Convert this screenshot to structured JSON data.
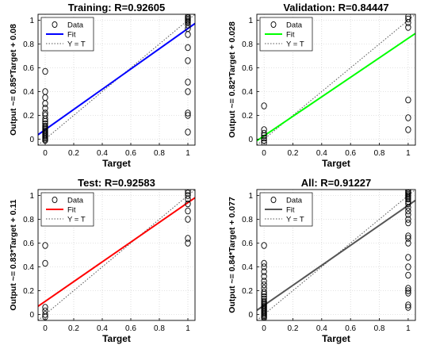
{
  "chart_data": [
    {
      "type": "scatter",
      "title": "Training: R=0.92605",
      "xlabel": "Target",
      "ylabel": "Output ~= 0.85*Target + 0.08",
      "xlim": [
        -0.05,
        1.05
      ],
      "ylim": [
        -0.05,
        1.05
      ],
      "xticks": [
        "0",
        "0.2",
        "0.4",
        "0.6",
        "0.8",
        "1"
      ],
      "yticks": [
        "0",
        "0.2",
        "0.4",
        "0.6",
        "0.8",
        "1"
      ],
      "legend": {
        "placement": "top-left",
        "entries": [
          "Data",
          "Fit",
          "Y = T"
        ]
      },
      "fit": {
        "slope": 0.85,
        "intercept": 0.08,
        "color": "#0000ff"
      },
      "data": [
        {
          "x": 0,
          "y": -0.01
        },
        {
          "x": 0,
          "y": 0.0
        },
        {
          "x": 0,
          "y": 0.01
        },
        {
          "x": 0,
          "y": 0.02
        },
        {
          "x": 0,
          "y": 0.03
        },
        {
          "x": 0,
          "y": 0.04
        },
        {
          "x": 0,
          "y": 0.05
        },
        {
          "x": 0,
          "y": 0.06
        },
        {
          "x": 0,
          "y": 0.07
        },
        {
          "x": 0,
          "y": 0.08
        },
        {
          "x": 0,
          "y": 0.09
        },
        {
          "x": 0,
          "y": 0.1
        },
        {
          "x": 0,
          "y": 0.11
        },
        {
          "x": 0,
          "y": 0.13
        },
        {
          "x": 0,
          "y": 0.15
        },
        {
          "x": 0,
          "y": 0.17
        },
        {
          "x": 0,
          "y": 0.2
        },
        {
          "x": 0,
          "y": 0.22
        },
        {
          "x": 0,
          "y": 0.26
        },
        {
          "x": 0,
          "y": 0.3
        },
        {
          "x": 0,
          "y": 0.35
        },
        {
          "x": 0,
          "y": 0.4
        },
        {
          "x": 0,
          "y": 0.57
        },
        {
          "x": 1,
          "y": 0.06
        },
        {
          "x": 1,
          "y": 0.2
        },
        {
          "x": 1,
          "y": 0.22
        },
        {
          "x": 1,
          "y": 0.4
        },
        {
          "x": 1,
          "y": 0.48
        },
        {
          "x": 1,
          "y": 0.66
        },
        {
          "x": 1,
          "y": 0.77
        },
        {
          "x": 1,
          "y": 0.88
        },
        {
          "x": 1,
          "y": 0.93
        },
        {
          "x": 1,
          "y": 0.96
        },
        {
          "x": 1,
          "y": 0.98
        },
        {
          "x": 1,
          "y": 0.99
        },
        {
          "x": 1,
          "y": 1.0
        },
        {
          "x": 1,
          "y": 1.01
        },
        {
          "x": 1,
          "y": 1.02
        },
        {
          "x": 1,
          "y": 1.03
        }
      ]
    },
    {
      "type": "scatter",
      "title": "Validation: R=0.84447",
      "xlabel": "Target",
      "ylabel": "Output ~= 0.82*Target + 0.028",
      "xlim": [
        -0.05,
        1.05
      ],
      "ylim": [
        -0.05,
        1.05
      ],
      "xticks": [
        "0",
        "0.2",
        "0.4",
        "0.6",
        "0.8",
        "1"
      ],
      "yticks": [
        "0",
        "0.2",
        "0.4",
        "0.6",
        "0.8",
        "1"
      ],
      "legend": {
        "placement": "top-left",
        "entries": [
          "Data",
          "Fit",
          "Y = T"
        ]
      },
      "fit": {
        "slope": 0.82,
        "intercept": 0.028,
        "color": "#00ff00"
      },
      "data": [
        {
          "x": 0,
          "y": -0.03
        },
        {
          "x": 0,
          "y": -0.01
        },
        {
          "x": 0,
          "y": 0.01
        },
        {
          "x": 0,
          "y": 0.03
        },
        {
          "x": 0,
          "y": 0.05
        },
        {
          "x": 0,
          "y": 0.08
        },
        {
          "x": 0,
          "y": 0.28
        },
        {
          "x": 1,
          "y": 0.08
        },
        {
          "x": 1,
          "y": 0.18
        },
        {
          "x": 1,
          "y": 0.33
        },
        {
          "x": 1,
          "y": 0.94
        },
        {
          "x": 1,
          "y": 0.98
        },
        {
          "x": 1,
          "y": 1.01
        },
        {
          "x": 1,
          "y": 1.03
        }
      ]
    },
    {
      "type": "scatter",
      "title": "Test: R=0.92583",
      "xlabel": "Target",
      "ylabel": "Output ~= 0.83*Target + 0.11",
      "xlim": [
        -0.05,
        1.05
      ],
      "ylim": [
        -0.05,
        1.05
      ],
      "xticks": [
        "0",
        "0.2",
        "0.4",
        "0.6",
        "0.8",
        "1"
      ],
      "yticks": [
        "0",
        "0.2",
        "0.4",
        "0.6",
        "0.8",
        "1"
      ],
      "legend": {
        "placement": "top-left",
        "entries": [
          "Data",
          "Fit",
          "Y = T"
        ]
      },
      "fit": {
        "slope": 0.83,
        "intercept": 0.11,
        "color": "#ff0000"
      },
      "data": [
        {
          "x": 0,
          "y": -0.02
        },
        {
          "x": 0,
          "y": 0.0
        },
        {
          "x": 0,
          "y": 0.03
        },
        {
          "x": 0,
          "y": 0.06
        },
        {
          "x": 0,
          "y": 0.43
        },
        {
          "x": 0,
          "y": 0.58
        },
        {
          "x": 1,
          "y": 0.6
        },
        {
          "x": 1,
          "y": 0.64
        },
        {
          "x": 1,
          "y": 0.8
        },
        {
          "x": 1,
          "y": 0.87
        },
        {
          "x": 1,
          "y": 0.93
        },
        {
          "x": 1,
          "y": 0.97
        },
        {
          "x": 1,
          "y": 1.0
        },
        {
          "x": 1,
          "y": 1.02
        },
        {
          "x": 1,
          "y": 1.04
        }
      ]
    },
    {
      "type": "scatter",
      "title": "All: R=0.91227",
      "xlabel": "Target",
      "ylabel": "Output ~= 0.84*Target + 0.077",
      "xlim": [
        -0.05,
        1.05
      ],
      "ylim": [
        -0.05,
        1.05
      ],
      "xticks": [
        "0",
        "0.2",
        "0.4",
        "0.6",
        "0.8",
        "1"
      ],
      "yticks": [
        "0",
        "0.2",
        "0.4",
        "0.6",
        "0.8",
        "1"
      ],
      "legend": {
        "placement": "top-left",
        "entries": [
          "Data",
          "Fit",
          "Y = T"
        ]
      },
      "fit": {
        "slope": 0.84,
        "intercept": 0.077,
        "color": "#555555"
      },
      "data": [
        {
          "x": 0,
          "y": -0.03
        },
        {
          "x": 0,
          "y": -0.02
        },
        {
          "x": 0,
          "y": -0.01
        },
        {
          "x": 0,
          "y": 0.0
        },
        {
          "x": 0,
          "y": 0.01
        },
        {
          "x": 0,
          "y": 0.02
        },
        {
          "x": 0,
          "y": 0.03
        },
        {
          "x": 0,
          "y": 0.04
        },
        {
          "x": 0,
          "y": 0.05
        },
        {
          "x": 0,
          "y": 0.06
        },
        {
          "x": 0,
          "y": 0.07
        },
        {
          "x": 0,
          "y": 0.08
        },
        {
          "x": 0,
          "y": 0.09
        },
        {
          "x": 0,
          "y": 0.1
        },
        {
          "x": 0,
          "y": 0.11
        },
        {
          "x": 0,
          "y": 0.13
        },
        {
          "x": 0,
          "y": 0.15
        },
        {
          "x": 0,
          "y": 0.17
        },
        {
          "x": 0,
          "y": 0.19
        },
        {
          "x": 0,
          "y": 0.22
        },
        {
          "x": 0,
          "y": 0.25
        },
        {
          "x": 0,
          "y": 0.28
        },
        {
          "x": 0,
          "y": 0.32
        },
        {
          "x": 0,
          "y": 0.36
        },
        {
          "x": 0,
          "y": 0.4
        },
        {
          "x": 0,
          "y": 0.43
        },
        {
          "x": 0,
          "y": 0.58
        },
        {
          "x": 1,
          "y": 0.06
        },
        {
          "x": 1,
          "y": 0.08
        },
        {
          "x": 1,
          "y": 0.18
        },
        {
          "x": 1,
          "y": 0.2
        },
        {
          "x": 1,
          "y": 0.22
        },
        {
          "x": 1,
          "y": 0.33
        },
        {
          "x": 1,
          "y": 0.4
        },
        {
          "x": 1,
          "y": 0.48
        },
        {
          "x": 1,
          "y": 0.6
        },
        {
          "x": 1,
          "y": 0.64
        },
        {
          "x": 1,
          "y": 0.66
        },
        {
          "x": 1,
          "y": 0.77
        },
        {
          "x": 1,
          "y": 0.8
        },
        {
          "x": 1,
          "y": 0.84
        },
        {
          "x": 1,
          "y": 0.87
        },
        {
          "x": 1,
          "y": 0.9
        },
        {
          "x": 1,
          "y": 0.93
        },
        {
          "x": 1,
          "y": 0.95
        },
        {
          "x": 1,
          "y": 0.97
        },
        {
          "x": 1,
          "y": 0.98
        },
        {
          "x": 1,
          "y": 0.99
        },
        {
          "x": 1,
          "y": 1.0
        },
        {
          "x": 1,
          "y": 1.01
        },
        {
          "x": 1,
          "y": 1.02
        },
        {
          "x": 1,
          "y": 1.03
        },
        {
          "x": 1,
          "y": 1.04
        }
      ]
    }
  ]
}
